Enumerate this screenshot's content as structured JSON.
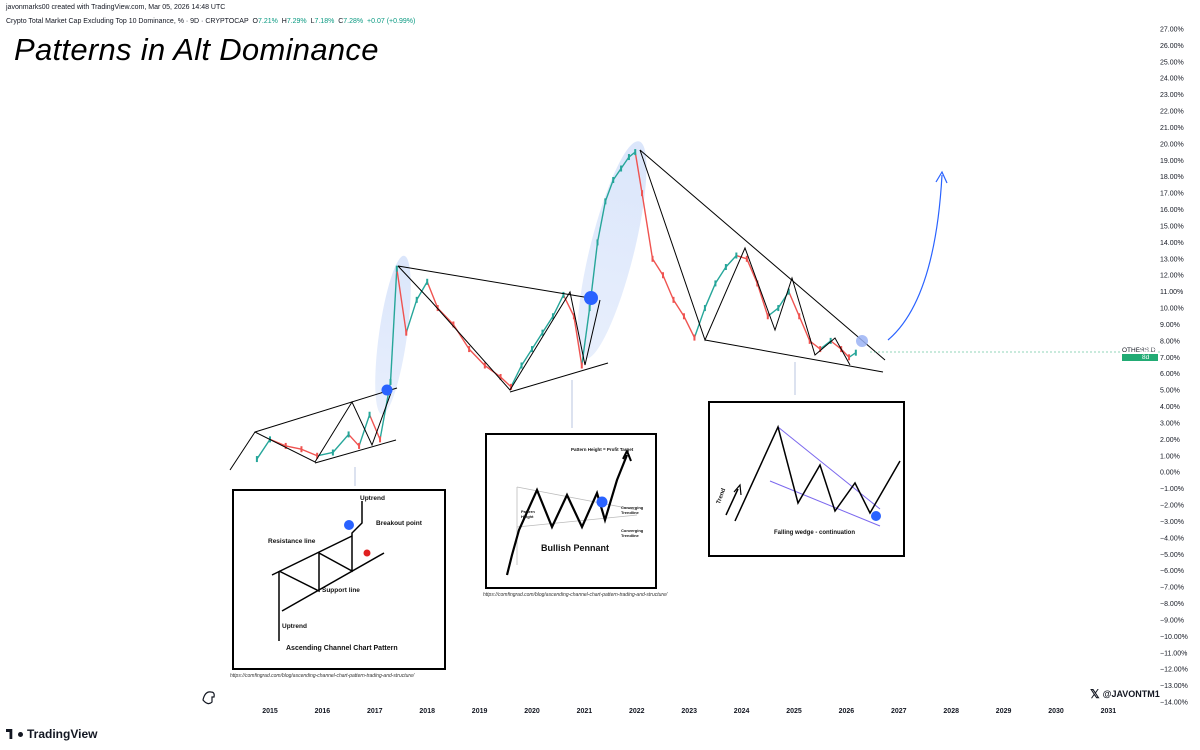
{
  "header": {
    "credit": "javonmarks00 created with TradingView.com, Mar 05, 2026 14:48 UTC",
    "symbol_desc": "Crypto Total Market Cap Excluding Top 10 Dominance, % · 9D · CRYPTOCAP",
    "o_label": "O",
    "o_val": "7.21%",
    "h_label": "H",
    "h_val": "7.29%",
    "l_label": "L",
    "l_val": "7.18%",
    "c_label": "C",
    "c_val": "7.28%",
    "change": "+0.07 (+0.99%)"
  },
  "title": "Patterns in Alt Dominance",
  "price_badge": {
    "symbol": "OTHERS.D",
    "value": "7.28%",
    "countdown": "8d 10h"
  },
  "footer": {
    "logo_text": "TradingView",
    "handle": "@JAVONTM1"
  },
  "insets": {
    "ascending": {
      "uptrend_top": "Uptrend",
      "breakout": "Breakout point",
      "resistance": "Resistance line",
      "support": "Support line",
      "uptrend_bottom": "Uptrend",
      "caption": "Ascending Channel Chart Pattern",
      "source": "https://comfingrad.com/blog/ascending-channel-chart-pattern-trading-and-structure/"
    },
    "pennant": {
      "target": "Pattern Height = Profit Target",
      "height": "Pattern Height",
      "caption": "Bullish Pennant",
      "converging_top": "Converging Trendline",
      "converging_bottom": "Converging Trendline",
      "source": "https://comfingrad.com/blog/ascending-channel-chart-pattern-trading-and-structure/"
    },
    "wedge": {
      "trend": "Trend",
      "caption": "Falling wedge - continuation"
    }
  },
  "chart_data": {
    "type": "line",
    "symbol": "OTHERS.D",
    "interval": "9D",
    "x_ticks": [
      "2015",
      "2016",
      "2017",
      "2018",
      "2019",
      "2020",
      "2021",
      "2022",
      "2023",
      "2024",
      "2025",
      "2026",
      "2027",
      "2028",
      "2029",
      "2030",
      "2031"
    ],
    "y_ticks": [
      "27.00%",
      "26.00%",
      "25.00%",
      "24.00%",
      "23.00%",
      "22.00%",
      "21.00%",
      "20.00%",
      "19.00%",
      "18.00%",
      "17.00%",
      "16.00%",
      "15.00%",
      "14.00%",
      "13.00%",
      "12.00%",
      "11.00%",
      "10.00%",
      "9.00%",
      "8.00%",
      "7.00%",
      "6.00%",
      "5.00%",
      "4.00%",
      "3.00%",
      "2.00%",
      "1.00%",
      "0.00%",
      "−1.00%",
      "−2.00%",
      "−3.00%",
      "−4.00%",
      "−5.00%",
      "−6.00%",
      "−7.00%",
      "−8.00%",
      "−9.00%",
      "−10.00%",
      "−11.00%",
      "−12.00%",
      "−13.00%",
      "−14.00%"
    ],
    "ylim": [
      -14,
      27
    ],
    "xlim": [
      2014.6,
      2031.3
    ],
    "series": [
      {
        "x": [
          2014.75,
          2015.0,
          2015.3,
          2015.6,
          2015.9,
          2016.2,
          2016.5,
          2016.7,
          2016.9,
          2017.1,
          2017.3,
          2017.42,
          2017.6,
          2017.8,
          2018.0,
          2018.2,
          2018.5,
          2018.8,
          2019.1,
          2019.4,
          2019.6,
          2019.8,
          2020.0,
          2020.2,
          2020.4,
          2020.6,
          2020.8,
          2020.95,
          2021.1,
          2021.25,
          2021.4,
          2021.55,
          2021.7,
          2021.85,
          2021.97,
          2022.1,
          2022.3,
          2022.5,
          2022.7,
          2022.9,
          2023.1,
          2023.3,
          2023.5,
          2023.7,
          2023.9,
          2024.1,
          2024.3,
          2024.5,
          2024.7,
          2024.9,
          2025.1,
          2025.3,
          2025.5,
          2025.7,
          2025.9,
          2026.05,
          2026.18
        ],
        "y": [
          0.8,
          2.0,
          1.6,
          1.4,
          1.0,
          1.2,
          2.3,
          1.6,
          3.5,
          2.0,
          5.5,
          12.4,
          8.5,
          10.5,
          11.6,
          10.0,
          9.0,
          7.5,
          6.5,
          5.8,
          5.2,
          6.5,
          7.5,
          8.5,
          9.5,
          10.8,
          9.5,
          6.5,
          10.0,
          14.0,
          16.5,
          17.8,
          18.5,
          19.2,
          19.5,
          17.0,
          13.0,
          12.0,
          10.5,
          9.5,
          8.2,
          10.0,
          11.5,
          12.5,
          13.2,
          13.0,
          11.5,
          9.5,
          10.0,
          11.0,
          9.5,
          8.0,
          7.5,
          8.0,
          7.5,
          7.0,
          7.28
        ]
      }
    ],
    "grid": false
  }
}
